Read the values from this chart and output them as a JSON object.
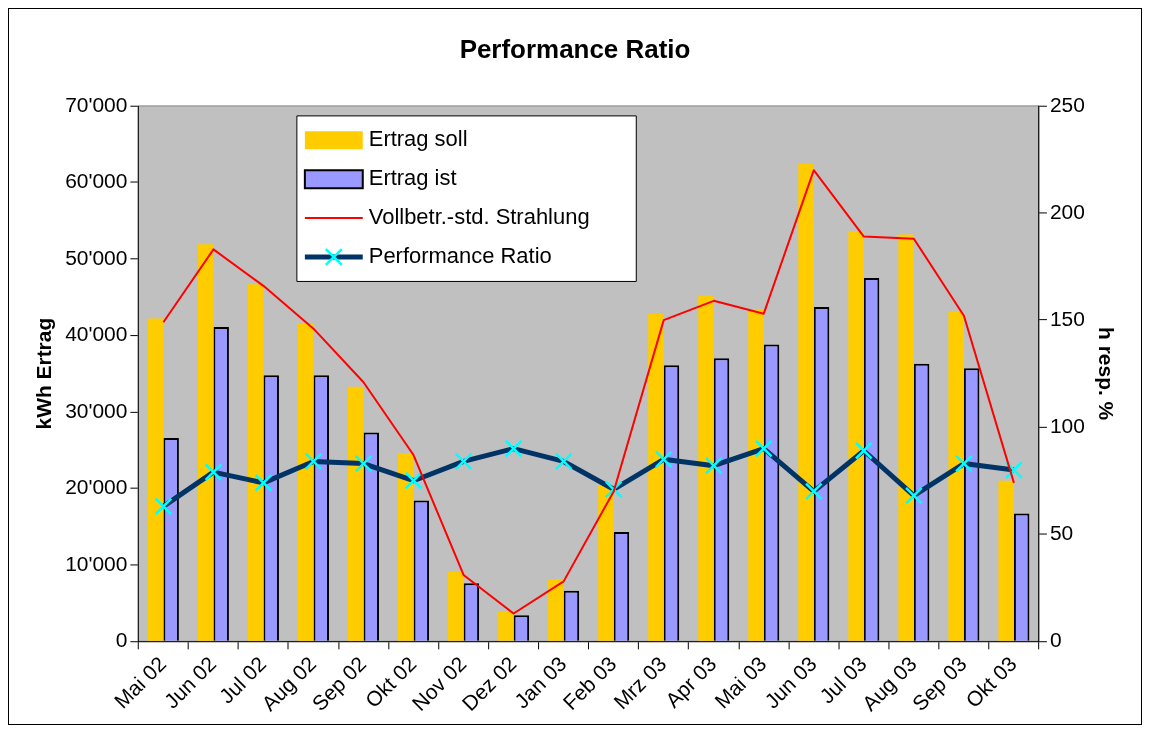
{
  "chart_data": {
    "type": "bar",
    "title": "Performance Ratio",
    "ylabel": "kWh Ertrag",
    "y2label": "h resp. %",
    "categories": [
      "Mai 02",
      "Jun 02",
      "Jul 02",
      "Aug 02",
      "Sep 02",
      "Okt 02",
      "Nov 02",
      "Dez 02",
      "Jan 03",
      "Feb 03",
      "Mrz 03",
      "Apr 03",
      "Mai 03",
      "Jun 03",
      "Jul 03",
      "Aug 03",
      "Sep 03",
      "Okt 03"
    ],
    "series": [
      {
        "name": "Ertrag soll",
        "color": "#ffcc00",
        "values": [
          42200,
          51900,
          46700,
          41500,
          33300,
          24600,
          9100,
          3900,
          8100,
          20400,
          42800,
          45200,
          43400,
          62400,
          53600,
          53200,
          43100,
          21000
        ]
      },
      {
        "name": "Ertrag ist",
        "color": "#9999ff",
        "values": [
          26600,
          41100,
          34800,
          34800,
          27300,
          18400,
          7600,
          3400,
          6600,
          14300,
          36100,
          37000,
          38800,
          43700,
          47500,
          36300,
          35700,
          16700
        ]
      },
      {
        "name": "Vollbetr.-std. Strahlung",
        "type": "line",
        "axis": "y2",
        "color": "#ff0000",
        "marker": "none",
        "values": [
          149,
          183,
          166,
          146,
          121,
          87,
          31,
          13,
          28,
          70,
          150,
          159,
          153,
          220,
          189,
          188,
          152,
          74
        ]
      },
      {
        "name": "Performance Ratio",
        "type": "line",
        "axis": "y2",
        "color": "#003366",
        "marker": "cross",
        "values": [
          63,
          79,
          74,
          84,
          83,
          75,
          84,
          90,
          84,
          71,
          85,
          82,
          90,
          70,
          89,
          68,
          83,
          80
        ]
      }
    ],
    "ylim": [
      0,
      70000
    ],
    "yticks": [
      {
        "value": 0,
        "label": "0"
      },
      {
        "value": 10000,
        "label": "10'000"
      },
      {
        "value": 20000,
        "label": "20'000"
      },
      {
        "value": 30000,
        "label": "30'000"
      },
      {
        "value": 40000,
        "label": "40'000"
      },
      {
        "value": 50000,
        "label": "50'000"
      },
      {
        "value": 60000,
        "label": "60'000"
      },
      {
        "value": 70000,
        "label": "70'000"
      }
    ],
    "y2lim": [
      0,
      250
    ],
    "y2ticks": [
      0,
      50,
      100,
      150,
      200,
      250
    ],
    "legend": "top",
    "grid": false
  }
}
